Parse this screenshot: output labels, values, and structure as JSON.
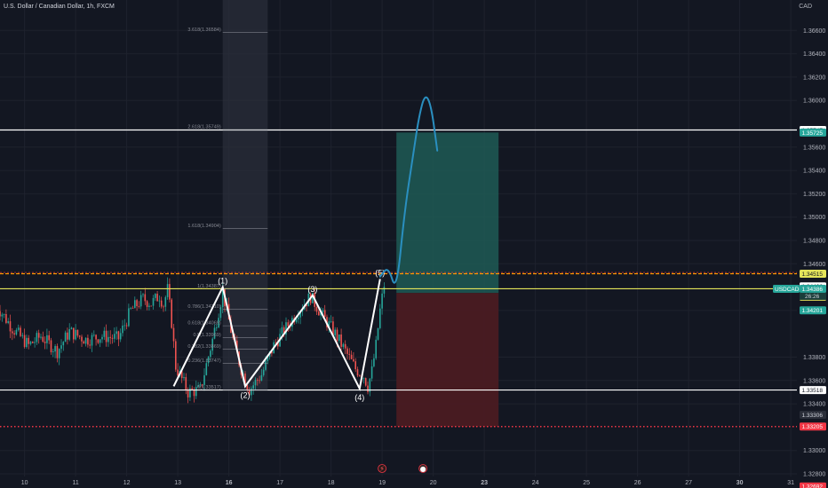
{
  "header": {
    "symbol_title": "U.S. Dollar / Canadian Dollar, 1h, FXCM",
    "currency": "CAD"
  },
  "colors": {
    "background": "#131722",
    "bull": "#26a69a",
    "bear": "#ef5350",
    "grid": "#1e222d",
    "white_line": "#ffffff",
    "yellow_line": "#e4e45a",
    "orange_line": "#ff9800",
    "red_dotted": "#f23645",
    "target_zone": "#1f5b55",
    "stop_zone": "#4a1b22",
    "drawing_blue": "#2a8fc0"
  },
  "chart_data": {
    "type": "candlestick",
    "symbol": "USDCAD",
    "timeframe": "1h",
    "y_axis": {
      "min": 1.328,
      "max": 1.368,
      "ticks": [
        1.328,
        1.33,
        1.334,
        1.336,
        1.338,
        1.342,
        1.346,
        1.348,
        1.35,
        1.352,
        1.354,
        1.356,
        1.36,
        1.362,
        1.364,
        1.366
      ],
      "tick_labels": [
        "1.32800",
        "1.33000",
        "1.33400",
        "1.33600",
        "1.33800",
        "1.34200",
        "1.34600",
        "1.34800",
        "1.35000",
        "1.35200",
        "1.35400",
        "1.35600",
        "1.36000",
        "1.36200",
        "1.36400",
        "1.36600"
      ]
    },
    "x_axis": {
      "labels": [
        "10",
        "11",
        "12",
        "13",
        "16",
        "17",
        "18",
        "19",
        "20",
        "23",
        "24",
        "25",
        "26",
        "27",
        "30",
        "31"
      ],
      "bold": [
        "16",
        "23",
        "30"
      ],
      "candle_bars": 330,
      "label_bars": [
        14,
        39,
        64,
        89,
        114,
        139,
        164,
        189,
        214,
        239,
        264,
        289,
        314,
        339,
        364,
        389
      ]
    },
    "price_path": {
      "bars": [
        0,
        8,
        16,
        22,
        30,
        36,
        44,
        52,
        60,
        66,
        72,
        76,
        80,
        82,
        84,
        86,
        88,
        94,
        100,
        106,
        111,
        116,
        120,
        124,
        130,
        136,
        142,
        148,
        154,
        160,
        166,
        172,
        176,
        180,
        182,
        184,
        186,
        188,
        190
      ],
      "prices": [
        1.3425,
        1.3405,
        1.339,
        1.3398,
        1.3385,
        1.3402,
        1.3395,
        1.3398,
        1.3396,
        1.342,
        1.343,
        1.3426,
        1.3433,
        1.3425,
        1.3438,
        1.341,
        1.3372,
        1.335,
        1.3352,
        1.3395,
        1.3436,
        1.3395,
        1.337,
        1.3352,
        1.3365,
        1.339,
        1.3405,
        1.342,
        1.3432,
        1.3415,
        1.34,
        1.3382,
        1.337,
        1.3364,
        1.3355,
        1.3368,
        1.339,
        1.342,
        1.3442
      ],
      "seed": 7
    },
    "levels": [
      {
        "price": 1.35747,
        "label": "1.35747",
        "color": "#ffffff",
        "style": "solid"
      },
      {
        "price": 1.34515,
        "label": "1.34515",
        "color": "#ff9800",
        "style": "dashed"
      },
      {
        "price": 1.34386,
        "label": "1.34386",
        "color": "#e4e45a",
        "style": "solid",
        "symbol": "USDCAD",
        "countdown": "26:26"
      },
      {
        "price": 1.33518,
        "label": "1.33518",
        "color": "#ffffff",
        "style": "solid"
      },
      {
        "price": 1.33205,
        "label": "1.33205",
        "color": "#f23645",
        "style": "dotted"
      }
    ],
    "price_tags": [
      {
        "price": 1.35747,
        "label": "1.35747",
        "bg": "#ffffff",
        "fg": "#131722"
      },
      {
        "price": 1.35725,
        "label": "1.35725",
        "bg": "#26a69a",
        "fg": "#ffffff"
      },
      {
        "price": 1.34515,
        "label": "1.34515",
        "bg": "#e4e45a",
        "fg": "#131722"
      },
      {
        "price": 1.34406,
        "label": "1.34406",
        "bg": "#ffffff",
        "fg": "#131722"
      },
      {
        "price": 1.34318,
        "label": "1.34318",
        "bg": "#e4e45a",
        "fg": "#131722"
      },
      {
        "price": 1.34201,
        "label": "1.34201",
        "bg": "#26a69a",
        "fg": "#ffffff"
      },
      {
        "price": 1.33518,
        "label": "1.33518",
        "bg": "#ffffff",
        "fg": "#131722"
      },
      {
        "price": 1.33306,
        "label": "1.33306",
        "bg": "#2a2e39",
        "fg": "#d1d4dc"
      },
      {
        "price": 1.33205,
        "label": "1.33205",
        "bg": "#f23645",
        "fg": "#ffffff"
      },
      {
        "price": 1.32692,
        "label": "1.32692",
        "bg": "#f23645",
        "fg": "#ffffff"
      }
    ],
    "current_price_tag": {
      "symbol": "USDCAD",
      "price": "1.34386",
      "countdown": "26:26"
    },
    "fib_extension": {
      "bar_start": 111,
      "bar_end": 133,
      "levels": [
        {
          "label": "3.618(1.36584)",
          "price": 1.36584
        },
        {
          "label": "2.618(1.35749)",
          "price": 1.35749
        },
        {
          "label": "1.618(1.34904)",
          "price": 1.34904
        },
        {
          "label": "1(1.34387)",
          "price": 1.34387
        },
        {
          "label": "0.786(1.34210)",
          "price": 1.3421
        },
        {
          "label": "0.618(1.34069)",
          "price": 1.34069
        },
        {
          "label": "0.5(1.33969)",
          "price": 1.33969
        },
        {
          "label": "0.382(1.33869)",
          "price": 1.33869
        },
        {
          "label": "0.236(1.33747)",
          "price": 1.33747
        },
        {
          "label": "0(1.33517)",
          "price": 1.33517
        }
      ]
    },
    "waves": [
      {
        "label": "",
        "bar": 87,
        "price": 1.3355
      },
      {
        "label": "(1)",
        "bar": 111,
        "price": 1.344
      },
      {
        "label": "(2)",
        "bar": 122,
        "price": 1.3355
      },
      {
        "label": "(3)",
        "bar": 155,
        "price": 1.3433
      },
      {
        "label": "(4)",
        "bar": 178,
        "price": 1.3353
      },
      {
        "label": "(5)",
        "bar": 188,
        "price": 1.3447
      }
    ],
    "position": {
      "bar_start": 196,
      "bar_end": 246,
      "entry": 1.3435,
      "target": 1.35725,
      "stop": 1.33205
    },
    "projection": {
      "bars": [
        188,
        192,
        196,
        200,
        204,
        207,
        210,
        213,
        216
      ],
      "prices": [
        1.3449,
        1.3458,
        1.3435,
        1.3505,
        1.3551,
        1.3586,
        1.3606,
        1.3596,
        1.3557
      ]
    },
    "time_icons": [
      {
        "name": "lightning",
        "bar": 189,
        "glyph": "⚡"
      },
      {
        "name": "calendar",
        "bar": 209,
        "glyph": "●"
      }
    ]
  }
}
